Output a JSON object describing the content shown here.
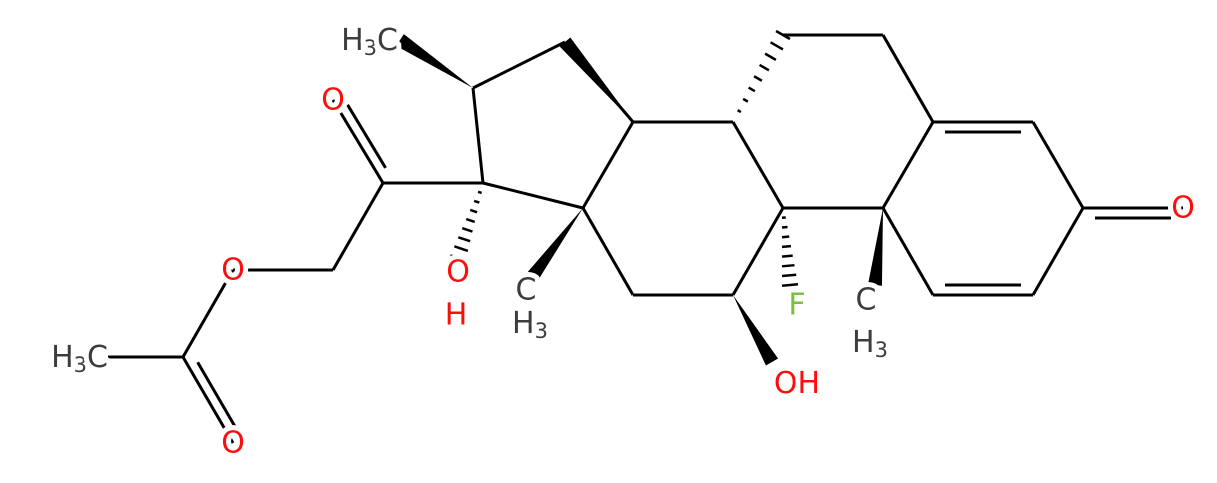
{
  "labels": [
    {
      "parts": [
        "H",
        "3",
        "C"
      ]
    },
    {
      "parts": [
        "O"
      ]
    },
    {
      "parts": [
        "O"
      ]
    },
    {
      "parts": [
        "H",
        "3",
        "C"
      ]
    },
    {
      "parts": [
        "O"
      ]
    },
    {
      "parts": [
        "O",
        "H"
      ]
    },
    {
      "parts": [
        "C",
        "H",
        "3"
      ]
    },
    {
      "parts": [
        "O",
        "H"
      ]
    },
    {
      "parts": [
        "F"
      ]
    },
    {
      "parts": [
        "C",
        "H",
        "3"
      ]
    },
    {
      "parts": [
        "O"
      ]
    }
  ]
}
